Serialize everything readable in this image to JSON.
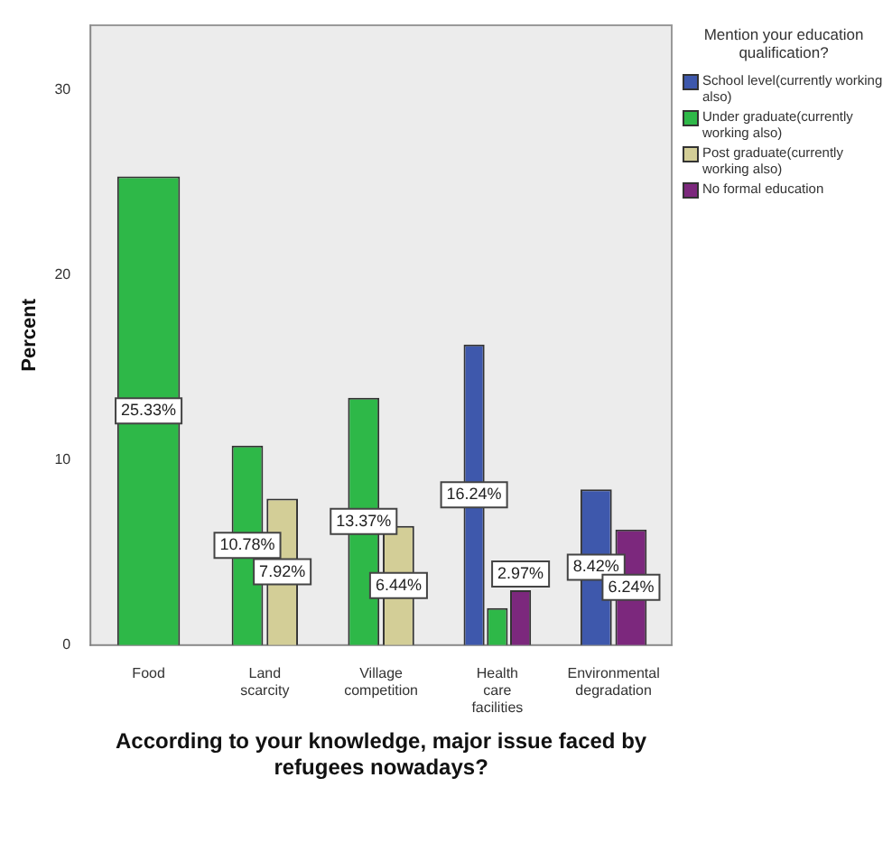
{
  "chart_data": {
    "type": "bar",
    "xlabel": "According to your knowledge, major issue faced by refugees nowadays?",
    "ylabel": "Percent",
    "legend_title": "Mention your education qualification?",
    "legend": "right",
    "grid": false,
    "categories": [
      "Food",
      "Land scarcity",
      "Village competition",
      "Health care facilities",
      "Environmental degradation"
    ],
    "ylim": [
      0,
      33.5
    ],
    "yticks": [
      0,
      10,
      20,
      30
    ],
    "series": [
      {
        "name": "School level(currently working also)",
        "color": "#3e58ac",
        "values": [
          null,
          null,
          null,
          16.24,
          8.42
        ],
        "value_labels": [
          null,
          null,
          null,
          "16.24%",
          "8.42%"
        ]
      },
      {
        "name": "Under graduate(currently working also)",
        "color": "#2eb848",
        "values": [
          25.33,
          10.78,
          13.37,
          2.0,
          null
        ],
        "value_labels": [
          "25.33%",
          "10.78%",
          "13.37%",
          null,
          null
        ]
      },
      {
        "name": "Post graduate(currently working also)",
        "color": "#d3ce97",
        "values": [
          null,
          7.92,
          6.44,
          null,
          null
        ],
        "value_labels": [
          null,
          "7.92%",
          "6.44%",
          null,
          null
        ]
      },
      {
        "name": "No formal education",
        "color": "#7c287d",
        "values": [
          null,
          null,
          null,
          2.97,
          6.24
        ],
        "value_labels": [
          null,
          null,
          null,
          "2.97%",
          "6.24%"
        ]
      }
    ]
  }
}
